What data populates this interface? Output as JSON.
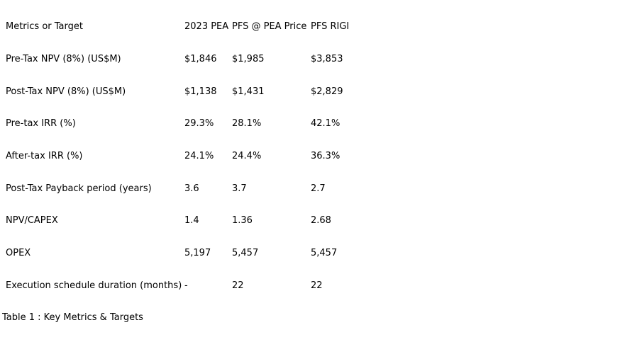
{
  "page": {
    "background": "#ffffff",
    "text_color": "#000000"
  },
  "table": {
    "columns": [
      "Metrics or Target",
      "2023 PEA",
      "PFS @ PEA Price",
      "PFS RIGI"
    ],
    "rows": [
      {
        "label": "Pre-Tax NPV (8%) (US$M)",
        "values": [
          "$1,846",
          "$1,985",
          "$3,853"
        ]
      },
      {
        "label": "Post-Tax NPV (8%) (US$M)",
        "values": [
          "$1,138",
          "$1,431",
          "$2,829"
        ]
      },
      {
        "label": "Pre-tax IRR (%)",
        "values": [
          "29.3%",
          "28.1%",
          "42.1%"
        ]
      },
      {
        "label": "After-tax IRR (%)",
        "values": [
          "24.1%",
          "24.4%",
          "36.3%"
        ]
      },
      {
        "label": "Post-Tax Payback period (years)",
        "values": [
          "3.6",
          "3.7",
          "2.7"
        ]
      },
      {
        "label": "NPV/CAPEX",
        "values": [
          "1.4",
          "1.36",
          "2.68"
        ]
      },
      {
        "label": "OPEX",
        "values": [
          "5,197",
          "5,457",
          "5,457"
        ]
      },
      {
        "label": "Execution schedule duration (months)",
        "values": [
          "-",
          "22",
          "22"
        ]
      }
    ],
    "caption": "Table 1 : Key Metrics & Targets"
  }
}
